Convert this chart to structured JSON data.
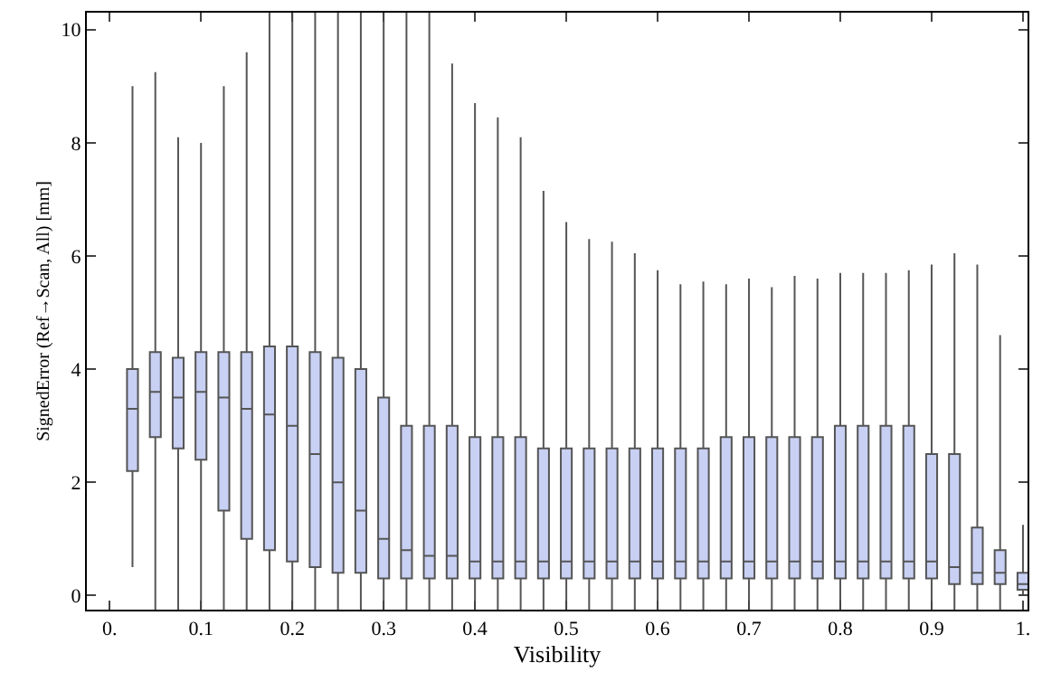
{
  "chart_data": {
    "type": "box",
    "xlabel": "Visibility",
    "ylabel": "SignedError (Ref→Scan, All) [mm]",
    "color": "#c8d0f4",
    "x": [
      0.025,
      0.05,
      0.075,
      0.1,
      0.125,
      0.15,
      0.175,
      0.2,
      0.225,
      0.25,
      0.275,
      0.3,
      0.325,
      0.35,
      0.375,
      0.4,
      0.425,
      0.45,
      0.475,
      0.5,
      0.525,
      0.55,
      0.575,
      0.6,
      0.625,
      0.65,
      0.675,
      0.7,
      0.725,
      0.75,
      0.775,
      0.8,
      0.825,
      0.85,
      0.875,
      0.9,
      0.925,
      0.95,
      0.975,
      1.0
    ],
    "boxes": [
      {
        "low": 0.5,
        "q1": 2.2,
        "median": 3.3,
        "q3": 4.0,
        "high": 9.0
      },
      {
        "low": -0.25,
        "q1": 2.8,
        "median": 3.6,
        "q3": 4.3,
        "high": 9.25
      },
      {
        "low": -0.25,
        "q1": 2.6,
        "median": 3.5,
        "q3": 4.2,
        "high": 8.1
      },
      {
        "low": -0.25,
        "q1": 2.4,
        "median": 3.6,
        "q3": 4.3,
        "high": 8.0
      },
      {
        "low": -0.25,
        "q1": 1.5,
        "median": 3.5,
        "q3": 4.3,
        "high": 9.0
      },
      {
        "low": -0.25,
        "q1": 1.0,
        "median": 3.3,
        "q3": 4.3,
        "high": 9.6
      },
      {
        "low": -0.25,
        "q1": 0.8,
        "median": 3.2,
        "q3": 4.4,
        "high": 10.3
      },
      {
        "low": -0.25,
        "q1": 0.6,
        "median": 3.0,
        "q3": 4.4,
        "high": 10.3
      },
      {
        "low": -0.25,
        "q1": 0.5,
        "median": 2.5,
        "q3": 4.3,
        "high": 10.3
      },
      {
        "low": -0.25,
        "q1": 0.4,
        "median": 2.0,
        "q3": 4.2,
        "high": 10.3
      },
      {
        "low": -0.25,
        "q1": 0.4,
        "median": 1.5,
        "q3": 4.0,
        "high": 10.3
      },
      {
        "low": -0.25,
        "q1": 0.3,
        "median": 1.0,
        "q3": 3.5,
        "high": 10.3
      },
      {
        "low": -0.25,
        "q1": 0.3,
        "median": 0.8,
        "q3": 3.0,
        "high": 10.3
      },
      {
        "low": -0.25,
        "q1": 0.3,
        "median": 0.7,
        "q3": 3.0,
        "high": 10.3
      },
      {
        "low": -0.25,
        "q1": 0.3,
        "median": 0.7,
        "q3": 3.0,
        "high": 9.4
      },
      {
        "low": -0.25,
        "q1": 0.3,
        "median": 0.6,
        "q3": 2.8,
        "high": 8.7
      },
      {
        "low": -0.25,
        "q1": 0.3,
        "median": 0.6,
        "q3": 2.8,
        "high": 8.45
      },
      {
        "low": -0.25,
        "q1": 0.3,
        "median": 0.6,
        "q3": 2.8,
        "high": 8.1
      },
      {
        "low": -0.25,
        "q1": 0.3,
        "median": 0.6,
        "q3": 2.6,
        "high": 7.15
      },
      {
        "low": -0.25,
        "q1": 0.3,
        "median": 0.6,
        "q3": 2.6,
        "high": 6.6
      },
      {
        "low": -0.25,
        "q1": 0.3,
        "median": 0.6,
        "q3": 2.6,
        "high": 6.3
      },
      {
        "low": -0.25,
        "q1": 0.3,
        "median": 0.6,
        "q3": 2.6,
        "high": 6.25
      },
      {
        "low": -0.25,
        "q1": 0.3,
        "median": 0.6,
        "q3": 2.6,
        "high": 6.05
      },
      {
        "low": -0.25,
        "q1": 0.3,
        "median": 0.6,
        "q3": 2.6,
        "high": 5.75
      },
      {
        "low": -0.25,
        "q1": 0.3,
        "median": 0.6,
        "q3": 2.6,
        "high": 5.5
      },
      {
        "low": -0.25,
        "q1": 0.3,
        "median": 0.6,
        "q3": 2.6,
        "high": 5.55
      },
      {
        "low": -0.25,
        "q1": 0.3,
        "median": 0.6,
        "q3": 2.8,
        "high": 5.5
      },
      {
        "low": -0.25,
        "q1": 0.3,
        "median": 0.6,
        "q3": 2.8,
        "high": 5.6
      },
      {
        "low": -0.25,
        "q1": 0.3,
        "median": 0.6,
        "q3": 2.8,
        "high": 5.45
      },
      {
        "low": -0.25,
        "q1": 0.3,
        "median": 0.6,
        "q3": 2.8,
        "high": 5.65
      },
      {
        "low": -0.25,
        "q1": 0.3,
        "median": 0.6,
        "q3": 2.8,
        "high": 5.6
      },
      {
        "low": -0.25,
        "q1": 0.3,
        "median": 0.6,
        "q3": 3.0,
        "high": 5.7
      },
      {
        "low": -0.25,
        "q1": 0.3,
        "median": 0.6,
        "q3": 3.0,
        "high": 5.7
      },
      {
        "low": -0.25,
        "q1": 0.3,
        "median": 0.6,
        "q3": 3.0,
        "high": 5.7
      },
      {
        "low": -0.25,
        "q1": 0.3,
        "median": 0.6,
        "q3": 3.0,
        "high": 5.75
      },
      {
        "low": -0.25,
        "q1": 0.3,
        "median": 0.6,
        "q3": 2.5,
        "high": 5.85
      },
      {
        "low": -0.25,
        "q1": 0.2,
        "median": 0.5,
        "q3": 2.5,
        "high": 6.05
      },
      {
        "low": -0.25,
        "q1": 0.2,
        "median": 0.4,
        "q3": 1.2,
        "high": 5.85
      },
      {
        "low": -0.25,
        "q1": 0.2,
        "median": 0.4,
        "q3": 0.8,
        "high": 4.6
      },
      {
        "low": 0.0,
        "q1": 0.1,
        "median": 0.2,
        "q3": 0.4,
        "high": 1.25
      }
    ],
    "xlim": [
      -0.025,
      1.005
    ],
    "ylim": [
      -0.25,
      10.3
    ],
    "xticks": [
      {
        "value": 0,
        "label": "0."
      },
      0.1,
      0.2,
      0.3,
      0.4,
      0.5,
      0.6,
      0.7,
      0.8,
      0.9,
      {
        "value": 1,
        "label": "1."
      }
    ],
    "yticks": [
      0,
      2,
      4,
      6,
      8,
      10
    ]
  }
}
